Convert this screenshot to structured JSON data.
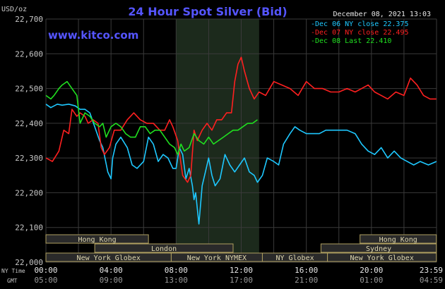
{
  "header": {
    "title": "24 Hour Spot Silver (Bid)",
    "unit": "USD/oz",
    "timestamp": "December 08, 2021 13:03",
    "watermark": "www.kitco.com"
  },
  "footer": {
    "ny_label": "NY Time",
    "gmt_label": "GMT",
    "ny_ticks": [
      "00:00",
      "04:00",
      "08:00",
      "12:00",
      "16:00",
      "20:00",
      "23:59"
    ],
    "gmt_ticks": [
      "05:00",
      "09:00",
      "13:00",
      "17:00",
      "21:00",
      "01:00",
      "04:59"
    ]
  },
  "sessions": [
    {
      "label": "Hong Kong",
      "start": 0,
      "end": 6.3,
      "row": 0
    },
    {
      "label": "Hong Kong",
      "start": 19.3,
      "end": 23.99,
      "row": 0
    },
    {
      "label": "London",
      "start": 3,
      "end": 11.5,
      "row": 1
    },
    {
      "label": "Sydney",
      "start": 16.9,
      "end": 23.99,
      "row": 1
    },
    {
      "label": "New York Globex",
      "start": 0,
      "end": 7.7,
      "row": 2
    },
    {
      "label": "New York NYMEX",
      "start": 7.7,
      "end": 13.3,
      "row": 2
    },
    {
      "label": "NY Globex",
      "start": 13.3,
      "end": 17.3,
      "row": 2
    },
    {
      "label": "New York Globex",
      "start": 17.3,
      "end": 23.99,
      "row": 2
    }
  ],
  "chart_data": {
    "type": "line",
    "title": "24 Hour Spot Silver (Bid)",
    "ylabel": "USD/oz",
    "ylim": [
      22.0,
      22.7
    ],
    "xlim": [
      0,
      24
    ],
    "yticks": [
      "22,000",
      "22,100",
      "22,200",
      "22,300",
      "22,400",
      "22,500",
      "22,600",
      "22,700"
    ],
    "grid": true,
    "legend": "top-right",
    "highlight": {
      "start": 8.0,
      "end": 13.1,
      "color": "#1c2a1c"
    },
    "colors": {
      "grid": "#3a3a3a",
      "axis_text": "#c8c8c8",
      "title": "#5555ff",
      "watermark": "#5555ff",
      "session_fill": "#2a2a2a",
      "session_border": "#b0a060",
      "session_text": "#e0d8b0"
    },
    "series": [
      {
        "name": "Dec 06 NY close 22.375",
        "color": "#1ec8ff",
        "x": [
          0,
          0.3,
          0.7,
          1.0,
          1.4,
          1.8,
          2.1,
          2.4,
          2.7,
          3.0,
          3.3,
          3.5,
          3.8,
          4.0,
          4.1,
          4.3,
          4.6,
          5.0,
          5.3,
          5.6,
          6.0,
          6.3,
          6.6,
          6.9,
          7.2,
          7.5,
          7.8,
          8.0,
          8.2,
          8.4,
          8.6,
          8.8,
          9.0,
          9.1,
          9.2,
          9.4,
          9.6,
          9.8,
          10.0,
          10.2,
          10.4,
          10.7,
          11.0,
          11.3,
          11.6,
          11.9,
          12.2,
          12.5,
          12.8,
          13.0,
          13.3,
          13.6,
          14.0,
          14.3,
          14.6,
          15.0,
          15.3,
          15.6,
          16.0,
          16.4,
          16.8,
          17.2,
          17.6,
          18.0,
          18.5,
          19.0,
          19.4,
          19.8,
          20.2,
          20.6,
          21.0,
          21.4,
          21.8,
          22.2,
          22.6,
          23.0,
          23.5,
          23.99
        ],
        "y": [
          22.455,
          22.445,
          22.455,
          22.452,
          22.455,
          22.45,
          22.44,
          22.44,
          22.43,
          22.39,
          22.35,
          22.33,
          22.26,
          22.24,
          22.3,
          22.34,
          22.36,
          22.33,
          22.28,
          22.27,
          22.29,
          22.36,
          22.34,
          22.29,
          22.31,
          22.3,
          22.27,
          22.27,
          22.33,
          22.31,
          22.24,
          22.27,
          22.22,
          22.18,
          22.2,
          22.11,
          22.22,
          22.26,
          22.3,
          22.25,
          22.22,
          22.24,
          22.31,
          22.28,
          22.26,
          22.28,
          22.3,
          22.26,
          22.25,
          22.23,
          22.25,
          22.3,
          22.29,
          22.28,
          22.34,
          22.37,
          22.39,
          22.38,
          22.37,
          22.37,
          22.37,
          22.38,
          22.38,
          22.38,
          22.38,
          22.37,
          22.34,
          22.32,
          22.31,
          22.33,
          22.3,
          22.32,
          22.3,
          22.29,
          22.28,
          22.29,
          22.28,
          22.29
        ]
      },
      {
        "name": "Dec 07 NY close 22.495",
        "color": "#ff2020",
        "x": [
          0,
          0.4,
          0.8,
          1.1,
          1.4,
          1.6,
          1.9,
          2.1,
          2.4,
          2.6,
          2.9,
          3.2,
          3.4,
          3.6,
          3.9,
          4.2,
          4.6,
          5.0,
          5.4,
          5.8,
          6.2,
          6.6,
          7.0,
          7.3,
          7.6,
          7.8,
          8.1,
          8.4,
          8.7,
          8.9,
          9.1,
          9.3,
          9.6,
          9.9,
          10.2,
          10.5,
          10.8,
          11.1,
          11.4,
          11.6,
          11.8,
          12.0,
          12.2,
          12.5,
          12.8,
          13.1,
          13.5,
          14.0,
          14.5,
          15.0,
          15.5,
          16.0,
          16.5,
          17.0,
          17.5,
          18.0,
          18.5,
          19.0,
          19.4,
          19.8,
          20.2,
          20.6,
          21.0,
          21.5,
          22.0,
          22.4,
          22.8,
          23.2,
          23.6,
          23.99
        ],
        "y": [
          22.3,
          22.29,
          22.32,
          22.38,
          22.37,
          22.44,
          22.42,
          22.43,
          22.42,
          22.4,
          22.41,
          22.4,
          22.33,
          22.31,
          22.33,
          22.38,
          22.38,
          22.41,
          22.43,
          22.41,
          22.4,
          22.4,
          22.38,
          22.38,
          22.41,
          22.39,
          22.35,
          22.25,
          22.23,
          22.25,
          22.38,
          22.35,
          22.38,
          22.4,
          22.38,
          22.41,
          22.41,
          22.43,
          22.43,
          22.52,
          22.57,
          22.59,
          22.55,
          22.5,
          22.47,
          22.49,
          22.48,
          22.52,
          22.51,
          22.5,
          22.48,
          22.52,
          22.5,
          22.5,
          22.49,
          22.49,
          22.5,
          22.49,
          22.5,
          22.51,
          22.49,
          22.48,
          22.47,
          22.49,
          22.48,
          22.53,
          22.51,
          22.48,
          22.47,
          22.47
        ]
      },
      {
        "name": "Dec 08 Last 22.410",
        "color": "#20e020",
        "x": [
          0,
          0.3,
          0.5,
          0.8,
          1.0,
          1.3,
          1.6,
          1.9,
          2.1,
          2.4,
          2.7,
          3.0,
          3.3,
          3.5,
          3.7,
          4.0,
          4.3,
          4.6,
          4.9,
          5.2,
          5.5,
          5.8,
          6.1,
          6.4,
          6.7,
          7.0,
          7.3,
          7.6,
          7.9,
          8.1,
          8.3,
          8.5,
          8.8,
          9.1,
          9.4,
          9.7,
          10.0,
          10.3,
          10.6,
          10.9,
          11.2,
          11.5,
          11.8,
          12.1,
          12.4,
          12.7,
          13.0
        ],
        "y": [
          22.48,
          22.47,
          22.48,
          22.5,
          22.51,
          22.52,
          22.5,
          22.48,
          22.4,
          22.43,
          22.42,
          22.4,
          22.39,
          22.4,
          22.36,
          22.39,
          22.4,
          22.39,
          22.37,
          22.36,
          22.36,
          22.39,
          22.39,
          22.37,
          22.38,
          22.38,
          22.36,
          22.34,
          22.33,
          22.31,
          22.34,
          22.32,
          22.33,
          22.37,
          22.35,
          22.34,
          22.36,
          22.34,
          22.35,
          22.36,
          22.37,
          22.38,
          22.38,
          22.39,
          22.4,
          22.4,
          22.41
        ]
      }
    ]
  }
}
